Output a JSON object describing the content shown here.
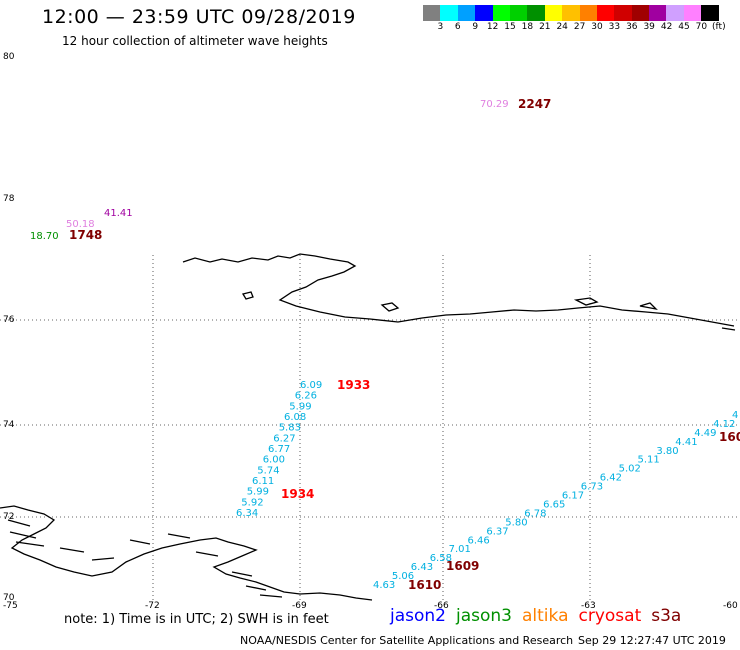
{
  "header": {
    "title": "12:00 — 23:59 UTC 09/28/2019",
    "subtitle": "12 hour collection of altimeter wave heights"
  },
  "colorbar": {
    "swatches": [
      "#808080",
      "#00ffff",
      "#00a0ff",
      "#0000ff",
      "#00ff00",
      "#00d000",
      "#009000",
      "#ffff00",
      "#ffc000",
      "#ff8000",
      "#ff0000",
      "#d00000",
      "#a00000",
      "#a000a0",
      "#d0a0ff",
      "#ff80ff",
      "#000000"
    ],
    "labels": [
      "3",
      "6",
      "9",
      "12",
      "15",
      "18",
      "21",
      "24",
      "27",
      "30",
      "33",
      "36",
      "39",
      "42",
      "45",
      "70",
      "(ft)"
    ]
  },
  "axes": {
    "lat_labels": [
      "80",
      "78",
      "76",
      "74",
      "72",
      "70"
    ],
    "lon_labels": [
      "-75",
      "-72",
      "-69",
      "-66",
      "-63",
      "-60"
    ]
  },
  "observations": {
    "top_cluster": {
      "values": [
        {
          "text": "70.29",
          "color": "#e080e0"
        }
      ],
      "time": {
        "text": "2247",
        "color": "#800000"
      }
    },
    "left_cluster": {
      "values": [
        {
          "text": "41.41",
          "color": "#a000a0"
        },
        {
          "text": "50.18",
          "color": "#e080e0"
        },
        {
          "text": "18.70",
          "color": "#009000"
        }
      ],
      "time": {
        "text": "1748",
        "color": "#800000"
      }
    },
    "track_1933": {
      "values": [
        "6.09",
        "6.26",
        "5.99",
        "6.08",
        "5.83",
        "6.27",
        "6.77",
        "6.00",
        "5.74",
        "6.11",
        "5.99",
        "5.92",
        "6.34"
      ],
      "color": "#00b0e0",
      "time_top": {
        "text": "1933",
        "color": "#ff0000"
      },
      "time_bottom": {
        "text": "1934",
        "color": "#ff0000"
      }
    },
    "track_1609": {
      "values": [
        "4.63",
        "5.06",
        "6.43",
        "6.58",
        "7.01",
        "6.46",
        "6.37",
        "5.80",
        "6.78",
        "6.65",
        "6.17",
        "6.73",
        "6.42",
        "5.02",
        "5.11",
        "3.80",
        "4.41",
        "4.49",
        "4.12",
        "4"
      ],
      "color": "#00b0e0",
      "time_a": {
        "text": "1609",
        "color": "#800000"
      },
      "time_b": {
        "text": "1610",
        "color": "#800000"
      },
      "time_right": {
        "text": "160",
        "color": "#800000"
      }
    }
  },
  "footer": {
    "note": "note: 1) Time is in UTC; 2) SWH is in feet",
    "satellites": [
      {
        "name": "jason2",
        "color": "#0000ff"
      },
      {
        "name": "jason3",
        "color": "#009000"
      },
      {
        "name": "altika",
        "color": "#ff8000"
      },
      {
        "name": "cryosat",
        "color": "#ff0000"
      },
      {
        "name": "s3a",
        "color": "#800000"
      }
    ],
    "credit": "NOAA/NESDIS Center for Satellite Applications and Research",
    "timestamp": "Sep 29 12:27:47 UTC 2019"
  }
}
